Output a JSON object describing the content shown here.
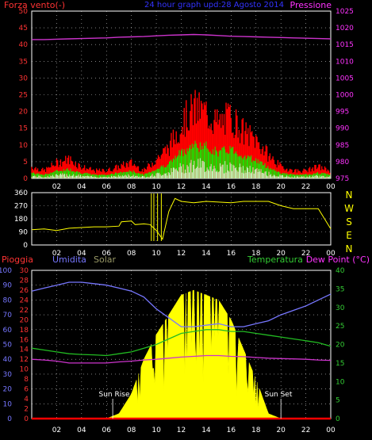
{
  "header": {
    "title": "24 hour graph upd:28 Agosto 2014",
    "left_label": "Forza vento(-)",
    "right_label": "Pressione"
  },
  "legend_bottom": {
    "pioggia": "Pioggia",
    "umidita": "Umidita",
    "solar": "Solar",
    "temperatura": "Temperatura",
    "dewpoint": "Dew Point (°C)"
  },
  "annotations": {
    "sunrise": "Sun Rise",
    "sunset": "Sun Set"
  },
  "direction_labels": [
    "N",
    "W",
    "S",
    "E",
    "N"
  ],
  "colors": {
    "wind_gust": "#ff0000",
    "wind_avg": "#00ff00",
    "wind_min": "#ccffcc",
    "pressure": "#cc33cc",
    "direction": "#ffff00",
    "humidity": "#7777ff",
    "temperature": "#22bb22",
    "dewpoint": "#cc33cc",
    "solar": "#ffff00",
    "rain": "#ff0000",
    "axis_left": "#ff3333",
    "axis_right": "#ff33ff",
    "axis_bottom_green": "#33cc33",
    "grid": "#ffffff"
  },
  "chart_data": [
    {
      "type": "line",
      "title": "24 hour graph upd:28 Agosto 2014",
      "xticks": [
        "02",
        "04",
        "06",
        "08",
        "10",
        "12",
        "14",
        "16",
        "18",
        "20",
        "22",
        "00"
      ],
      "x_hours": [
        0,
        1,
        2,
        3,
        4,
        5,
        6,
        7,
        8,
        9,
        10,
        11,
        12,
        13,
        14,
        15,
        16,
        17,
        18,
        19,
        20,
        21,
        22,
        23,
        24
      ],
      "ylim_left": [
        0,
        50
      ],
      "yticks_left": [
        0,
        5,
        10,
        15,
        20,
        25,
        30,
        35,
        40,
        45,
        50
      ],
      "ylim_right": [
        975,
        1025
      ],
      "yticks_right": [
        975,
        980,
        985,
        990,
        995,
        1000,
        1005,
        1010,
        1015,
        1020,
        1025
      ],
      "series": [
        {
          "name": "Forza vento",
          "axis": "left",
          "values": [
            3,
            2,
            4,
            5,
            3,
            2,
            2,
            3,
            4,
            2,
            5,
            8,
            14,
            18,
            17,
            14,
            16,
            12,
            10,
            6,
            3,
            2,
            2,
            3,
            2
          ]
        },
        {
          "name": "Pressione",
          "axis": "right",
          "values": [
            1016.5,
            1016.5,
            1016.6,
            1016.7,
            1016.8,
            1016.9,
            1017,
            1017.2,
            1017.3,
            1017.4,
            1017.6,
            1017.8,
            1017.9,
            1018,
            1017.9,
            1017.7,
            1017.5,
            1017.4,
            1017.3,
            1017.2,
            1017.1,
            1017,
            1016.9,
            1016.8,
            1016.7
          ]
        }
      ]
    },
    {
      "type": "line",
      "xticks": [
        "02",
        "04",
        "06",
        "08",
        "10",
        "12",
        "14",
        "16",
        "18",
        "20",
        "22",
        "00"
      ],
      "x_hours": [
        0,
        1,
        2,
        3,
        4,
        5,
        6,
        7,
        7.2,
        8,
        8.3,
        9,
        9.5,
        10,
        10.5,
        11,
        11.5,
        12,
        13,
        14,
        15,
        16,
        17,
        18,
        19,
        20,
        21,
        22,
        23,
        24
      ],
      "ylim": [
        0,
        360
      ],
      "yticks": [
        0,
        90,
        180,
        270,
        360
      ],
      "series": [
        {
          "name": "direction",
          "values": [
            105,
            110,
            100,
            115,
            120,
            125,
            125,
            130,
            160,
            165,
            140,
            145,
            140,
            100,
            40,
            230,
            320,
            300,
            290,
            300,
            295,
            290,
            300,
            300,
            300,
            270,
            250,
            250,
            250,
            110
          ]
        }
      ]
    },
    {
      "type": "area",
      "xticks": [
        "02",
        "04",
        "06",
        "08",
        "10",
        "12",
        "14",
        "16",
        "18",
        "20",
        "22",
        "00"
      ],
      "x_hours": [
        0,
        1,
        2,
        3,
        4,
        5,
        6,
        7,
        8,
        9,
        10,
        11,
        12,
        13,
        14,
        15,
        16,
        17,
        18,
        19,
        20,
        21,
        22,
        23,
        24
      ],
      "ylim_humidity": [
        0,
        100
      ],
      "yticks_humidity": [
        0,
        10,
        20,
        30,
        40,
        50,
        60,
        70,
        80,
        90,
        100
      ],
      "ylim_temp": [
        0,
        30
      ],
      "yticks_temp": [
        0,
        2,
        4,
        6,
        8,
        10,
        12,
        14,
        16,
        18,
        20,
        22,
        24,
        26,
        28,
        30
      ],
      "ylim_dew": [
        0,
        40
      ],
      "yticks_dew": [
        0,
        5,
        10,
        15,
        20,
        25,
        30,
        35,
        40
      ],
      "series": [
        {
          "name": "Umidita",
          "axis": "humidity",
          "values": [
            86,
            88,
            90,
            92,
            92,
            91,
            90,
            88,
            86,
            82,
            74,
            68,
            62,
            62,
            63,
            64,
            62,
            62,
            64,
            66,
            70,
            73,
            76,
            80,
            84
          ]
        },
        {
          "name": "Temperatura",
          "axis": "dew",
          "values": [
            19,
            18.5,
            18,
            17.5,
            17.3,
            17.2,
            17,
            17.5,
            18,
            19,
            20,
            21.5,
            23,
            23.5,
            24,
            24,
            23.5,
            23.5,
            23,
            22.5,
            22,
            21.5,
            21,
            20.5,
            19.5
          ]
        },
        {
          "name": "Dew Point",
          "axis": "dew",
          "values": [
            16,
            15.8,
            15.5,
            15,
            15,
            15,
            15,
            15.3,
            15.5,
            15.8,
            16,
            16.3,
            16.6,
            16.8,
            17,
            17,
            16.8,
            16.7,
            16.5,
            16.3,
            16.2,
            16.1,
            16,
            15.8,
            15.7
          ]
        },
        {
          "name": "Solar",
          "axis": "temp",
          "values": [
            0,
            0,
            0,
            0,
            0,
            0,
            0,
            1,
            5,
            12,
            17,
            21,
            25,
            26,
            25,
            24,
            20,
            14,
            8,
            1,
            0,
            0,
            0,
            0,
            0
          ]
        },
        {
          "name": "Pioggia",
          "axis": "humidity",
          "values": [
            0,
            0,
            0,
            0,
            0,
            0,
            0,
            0,
            0,
            0,
            0,
            0,
            0,
            0,
            0,
            0,
            0,
            0,
            0,
            0,
            0,
            0,
            0,
            0,
            0
          ]
        }
      ]
    }
  ]
}
